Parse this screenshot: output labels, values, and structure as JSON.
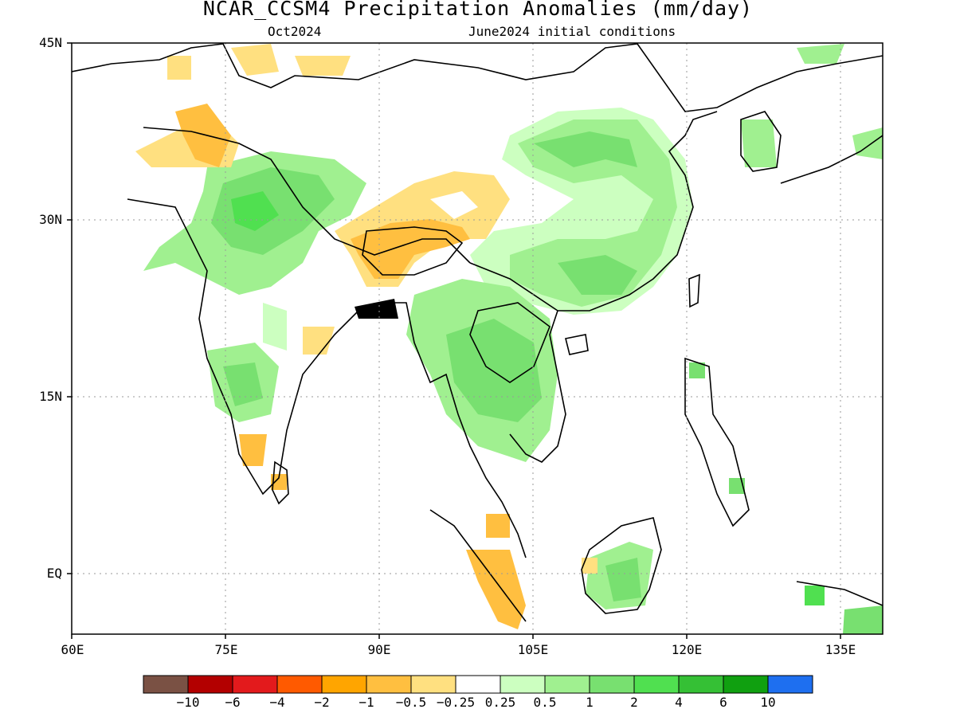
{
  "title": "NCAR_CCSM4 Precipitation Anomalies (mm/day)",
  "valid_month": "Oct2024",
  "init": "June2024 initial conditions",
  "lat_labels": [
    "45N",
    "30N",
    "15N",
    "EQ"
  ],
  "lon_labels": [
    "60E",
    "75E",
    "90E",
    "105E",
    "120E",
    "135E"
  ],
  "colorbar": {
    "colors": [
      "#7a5144",
      "#b30000",
      "#e31a1c",
      "#ff5a00",
      "#ffa500",
      "#ffbf40",
      "#ffe080",
      "#ffffff",
      "#ccffc0",
      "#a0f090",
      "#78e070",
      "#50e050",
      "#35c035",
      "#10a010",
      "#1e6ff0"
    ],
    "labels": [
      "−10",
      "−6",
      "−4",
      "−2",
      "−1",
      "−0.5",
      "−0.25",
      "0.25",
      "0.5",
      "1",
      "2",
      "4",
      "6",
      "10"
    ]
  }
}
